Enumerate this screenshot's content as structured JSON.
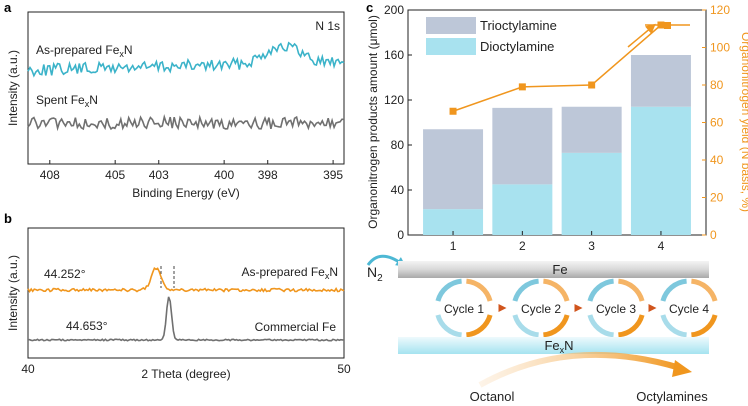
{
  "panels": {
    "a": {
      "letter": "a",
      "ylabel": "Intensity (a.u.)",
      "xlabel": "Binding Energy (eV)",
      "annotation": "N 1s",
      "ticks": [
        "408",
        "405",
        "403",
        "400",
        "398",
        "395"
      ],
      "label_asprep_base": "As-prepared Fe",
      "label_spent_base": "Spent Fe",
      "sub": "x",
      "suffix": "N"
    },
    "b": {
      "letter": "b",
      "ylabel": "Intensity (a.u.)",
      "xlabel": "2 Theta (degree)",
      "ticks": [
        "40",
        "50"
      ],
      "peak1": "44.252°",
      "peak2": "44.653°",
      "label_asprep_base": "As-prepared Fe",
      "sub": "x",
      "suffix": "N",
      "label_commercial": "Commercial Fe"
    },
    "c": {
      "letter": "c",
      "ylabel_left": "Organonitrogen products amount (μmol)",
      "ylabel_right": "Organonitrogen yield (N basis, %)",
      "legend": [
        "Trioctylamine",
        "Dioctylamine"
      ],
      "scheme": {
        "n2_base": "N",
        "n2_sub": "2",
        "fe": "Fe",
        "fexn_base": "Fe",
        "fexn_sub": "x",
        "fexn_suffix": "N",
        "cycles": [
          "Cycle 1",
          "Cycle 2",
          "Cycle 3",
          "Cycle 4"
        ],
        "octanol": "Octanol",
        "octylamines": "Octylamines"
      }
    }
  },
  "chart_data": [
    {
      "panel": "a",
      "type": "line",
      "title": "N 1s",
      "xlabel": "Binding Energy (eV)",
      "ylabel": "Intensity (a.u.)",
      "xlim": [
        409,
        394.5
      ],
      "xticks": [
        408,
        405,
        403,
        400,
        398,
        395
      ],
      "series": [
        {
          "name": "As-prepared FexN",
          "color": "#3bb3c9",
          "shape": "noisy baseline with broad peak near 397 eV"
        },
        {
          "name": "Spent FexN",
          "color": "#707070",
          "shape": "flat noisy baseline"
        }
      ]
    },
    {
      "panel": "b",
      "type": "line",
      "xlabel": "2 Theta (degree)",
      "ylabel": "Intensity (a.u.)",
      "xlim": [
        40,
        50
      ],
      "xticks": [
        40,
        50
      ],
      "series": [
        {
          "name": "As-prepared FexN",
          "color": "#f0961e",
          "peak_x": 44.252
        },
        {
          "name": "Commercial Fe",
          "color": "#707070",
          "peak_x": 44.653
        }
      ]
    },
    {
      "panel": "c",
      "type": "bar",
      "categories": [
        "1",
        "2",
        "3",
        "4"
      ],
      "series": [
        {
          "name": "Dioctylamine",
          "color": "#a8e2ef",
          "values": [
            23,
            45,
            73,
            114
          ]
        },
        {
          "name": "Trioctylamine",
          "color": "#bdc7d8",
          "values": [
            71,
            68,
            41,
            46
          ]
        }
      ],
      "totals": [
        94,
        113,
        114,
        160
      ],
      "ylabel": "Organonitrogen products amount (μmol)",
      "ylim": [
        0,
        200
      ],
      "yticks": [
        0,
        40,
        80,
        120,
        160,
        200
      ],
      "secondary": {
        "type": "line",
        "name": "Organonitrogen yield",
        "color": "#f0961e",
        "values": [
          66,
          79,
          80,
          112
        ],
        "ylabel": "Organonitrogen yield (N basis, %)",
        "ylim": [
          0,
          120
        ],
        "yticks": [
          0,
          20,
          40,
          60,
          80,
          100,
          120
        ]
      }
    }
  ]
}
